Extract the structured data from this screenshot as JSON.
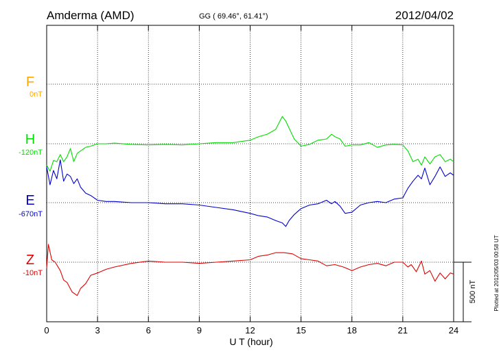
{
  "header": {
    "station": "Amderma (AMD)",
    "coords": "GG ( 69.46°,  61.41°)",
    "date": "2012/04/02"
  },
  "side_note": "Plotted at 2012/05/03 00:58 UT",
  "scale_label": "500 nT",
  "colors": {
    "F": "#ffa500",
    "H": "#00dd00",
    "E": "#0000cc",
    "Z": "#dd0000",
    "axis": "#000000"
  },
  "chart_data": {
    "type": "line",
    "xlabel": "U T (hour)",
    "xlim": [
      0,
      24
    ],
    "x_ticks": [
      0,
      3,
      6,
      9,
      12,
      15,
      18,
      21,
      24
    ],
    "grid": true,
    "scale_nT": 500,
    "series": [
      {
        "name": "F",
        "offset_label": "0nT",
        "values": []
      },
      {
        "name": "H",
        "offset_label": "-120nT",
        "x": [
          0,
          0.2,
          0.4,
          0.6,
          0.8,
          1.0,
          1.2,
          1.4,
          1.6,
          1.8,
          2.0,
          2.3,
          2.6,
          3.0,
          3.5,
          4,
          5,
          6,
          7,
          8,
          9,
          10,
          11,
          12,
          12.5,
          13,
          13.5,
          13.9,
          14.1,
          14.3,
          14.6,
          15,
          15.5,
          16,
          16.5,
          16.8,
          17,
          17.3,
          17.6,
          18,
          18.5,
          19,
          19.5,
          20,
          20.5,
          21,
          21.3,
          21.6,
          21.9,
          22.1,
          22.3,
          22.6,
          22.9,
          23.2,
          23.5,
          23.8,
          24
        ],
        "values": [
          -180,
          -230,
          -140,
          -150,
          -90,
          -150,
          -110,
          -40,
          -150,
          -80,
          -60,
          -30,
          -20,
          0,
          0,
          5,
          -5,
          -10,
          -5,
          -10,
          0,
          10,
          10,
          30,
          60,
          80,
          120,
          230,
          190,
          130,
          40,
          -20,
          -5,
          30,
          40,
          80,
          60,
          40,
          -20,
          -10,
          -10,
          10,
          -30,
          -10,
          -5,
          -10,
          -60,
          -150,
          -130,
          -180,
          -110,
          -170,
          -110,
          -90,
          -150,
          -130,
          -150
        ]
      },
      {
        "name": "E",
        "offset_label": "-670nT",
        "x": [
          0,
          0.2,
          0.4,
          0.6,
          0.8,
          1.0,
          1.2,
          1.4,
          1.6,
          1.8,
          2.0,
          2.3,
          2.6,
          3.0,
          3.5,
          4,
          5,
          6,
          7,
          8,
          9,
          10,
          11,
          12,
          12.5,
          13,
          13.5,
          13.9,
          14.1,
          14.3,
          14.6,
          15,
          15.5,
          16,
          16.5,
          16.8,
          17,
          17.3,
          17.6,
          18,
          18.5,
          19,
          19.5,
          20,
          20.5,
          21,
          21.3,
          21.6,
          21.9,
          22.1,
          22.3,
          22.6,
          22.9,
          23.2,
          23.5,
          23.8,
          24
        ],
        "values": [
          300,
          150,
          270,
          200,
          360,
          180,
          240,
          220,
          160,
          200,
          130,
          80,
          60,
          20,
          10,
          10,
          0,
          0,
          -10,
          -10,
          -20,
          -40,
          -60,
          -90,
          -110,
          -120,
          -150,
          -170,
          -200,
          -150,
          -100,
          -50,
          -20,
          -10,
          20,
          -10,
          10,
          -30,
          -90,
          -80,
          -20,
          0,
          10,
          0,
          30,
          40,
          120,
          180,
          230,
          200,
          290,
          150,
          220,
          300,
          220,
          250,
          230
        ]
      },
      {
        "name": "Z",
        "offset_label": "-10nT",
        "x": [
          0,
          0.1,
          0.3,
          0.5,
          0.8,
          1.0,
          1.2,
          1.5,
          1.8,
          2.0,
          2.3,
          2.6,
          3.0,
          3.5,
          4,
          5,
          6,
          7,
          8,
          9,
          10,
          11,
          12,
          12.5,
          13,
          13.5,
          14,
          14.5,
          15,
          15.5,
          16,
          16.5,
          17,
          17.5,
          18,
          18.5,
          19,
          19.5,
          20,
          20.5,
          21,
          21.3,
          21.5,
          21.8,
          22.1,
          22.3,
          22.6,
          22.9,
          23.2,
          23.5,
          23.8,
          24
        ],
        "values": [
          -50,
          150,
          20,
          0,
          -70,
          -150,
          -170,
          -250,
          -280,
          -220,
          -180,
          -110,
          -90,
          -60,
          -40,
          -10,
          10,
          0,
          0,
          -10,
          0,
          10,
          20,
          50,
          60,
          80,
          80,
          70,
          30,
          20,
          10,
          -30,
          -20,
          -40,
          -70,
          -40,
          -20,
          -10,
          -30,
          0,
          0,
          -40,
          -20,
          -80,
          10,
          -100,
          -70,
          -160,
          -90,
          -140,
          -90,
          -100
        ]
      }
    ]
  }
}
